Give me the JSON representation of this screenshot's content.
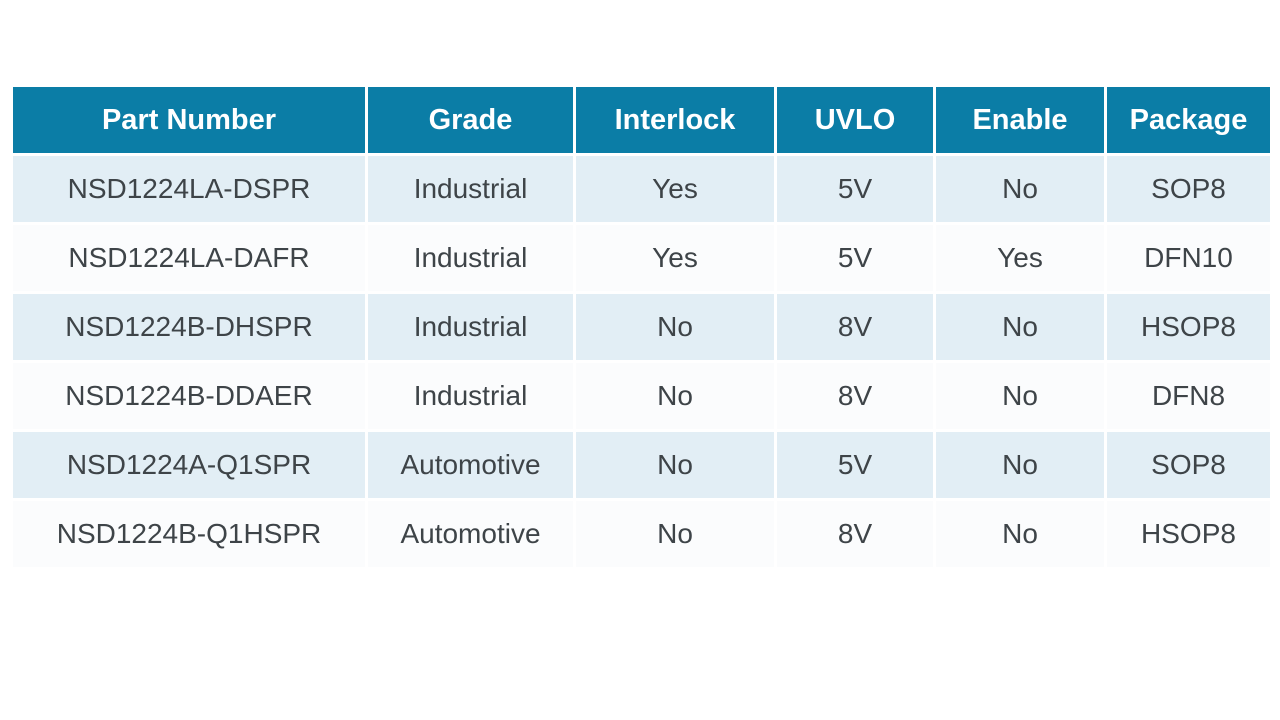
{
  "table": {
    "columns": [
      "Part Number",
      "Grade",
      "Interlock",
      "UVLO",
      "Enable",
      "Package"
    ],
    "rows": [
      [
        "NSD1224LA-DSPR",
        "Industrial",
        "Yes",
        "5V",
        "No",
        "SOP8"
      ],
      [
        "NSD1224LA-DAFR",
        "Industrial",
        "Yes",
        "5V",
        "Yes",
        "DFN10"
      ],
      [
        "NSD1224B-DHSPR",
        "Industrial",
        "No",
        "8V",
        "No",
        "HSOP8"
      ],
      [
        "NSD1224B-DDAER",
        "Industrial",
        "No",
        "8V",
        "No",
        "DFN8"
      ],
      [
        "NSD1224A-Q1SPR",
        "Automotive",
        "No",
        "5V",
        "No",
        "SOP8"
      ],
      [
        "NSD1224B-Q1HSPR",
        "Automotive",
        "No",
        "8V",
        "No",
        "HSOP8"
      ]
    ]
  },
  "chart_data": {
    "type": "table",
    "title": "",
    "columns": [
      "Part Number",
      "Grade",
      "Interlock",
      "UVLO",
      "Enable",
      "Package"
    ],
    "rows": [
      [
        "NSD1224LA-DSPR",
        "Industrial",
        "Yes",
        "5V",
        "No",
        "SOP8"
      ],
      [
        "NSD1224LA-DAFR",
        "Industrial",
        "Yes",
        "5V",
        "Yes",
        "DFN10"
      ],
      [
        "NSD1224B-DHSPR",
        "Industrial",
        "No",
        "8V",
        "No",
        "HSOP8"
      ],
      [
        "NSD1224B-DDAER",
        "Industrial",
        "No",
        "8V",
        "No",
        "DFN8"
      ],
      [
        "NSD1224A-Q1SPR",
        "Automotive",
        "No",
        "5V",
        "No",
        "SOP8"
      ],
      [
        "NSD1224B-Q1HSPR",
        "Automotive",
        "No",
        "8V",
        "No",
        "HSOP8"
      ]
    ]
  },
  "colors": {
    "header_bg": "#0b7da6",
    "header_text": "#ffffff",
    "row_odd_bg": "#e2eef5",
    "row_even_bg": "#fbfcfd",
    "cell_text": "#3e4448",
    "gridline": "#ffffff"
  }
}
